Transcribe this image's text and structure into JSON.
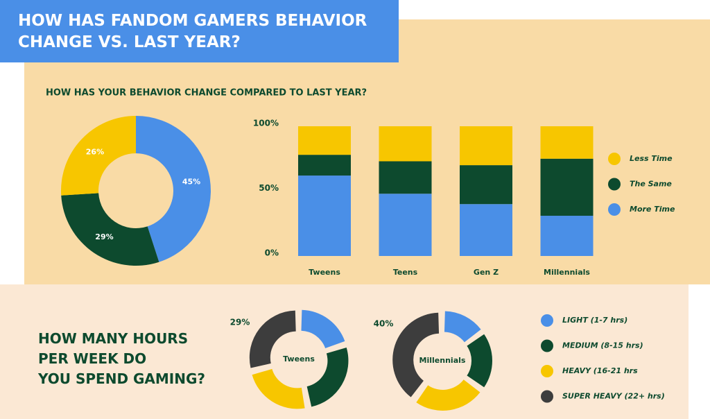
{
  "header": {
    "title": "HOW HAS FANDOM GAMERS BEHAVIOR CHANGE VS. LAST YEAR?"
  },
  "chart_data": [
    {
      "type": "donut",
      "title": "HOW HAS YOUR BEHAVIOR CHANGE COMPARED TO LAST YEAR?",
      "values": [
        45,
        29,
        26
      ],
      "value_labels": [
        "45%",
        "29%",
        "26%"
      ],
      "colors": [
        "#4a8fe7",
        "#0d4a2e",
        "#f7c600"
      ]
    },
    {
      "type": "stacked_bar",
      "categories": [
        "Tweens",
        "Teens",
        "Gen Z",
        "Millennials"
      ],
      "series": [
        {
          "name": "More Time",
          "color": "#4a8fe7",
          "values": [
            62,
            48,
            40,
            31
          ]
        },
        {
          "name": "The Same",
          "color": "#0d4a2e",
          "values": [
            16,
            25,
            30,
            44
          ]
        },
        {
          "name": "Less Time",
          "color": "#f7c600",
          "values": [
            22,
            27,
            30,
            25
          ]
        }
      ],
      "ylim": [
        0,
        100
      ],
      "yticks": [
        {
          "value": 0,
          "label": "0%"
        },
        {
          "value": 50,
          "label": "50%"
        },
        {
          "value": 100,
          "label": "100%"
        }
      ]
    },
    {
      "type": "donut_pair",
      "title": "HOW MANY HOURS PER WEEK DO YOU SPEND GAMING?",
      "categories": [
        "LIGHT (1-7 hrs)",
        "MEDIUM (8-15 hrs)",
        "HEAVY (16-21 hrs",
        "SUPER HEAVY (22+ hrs)"
      ],
      "colors": [
        "#4a8fe7",
        "#0d4a2e",
        "#f7c600",
        "#3d3d3d"
      ],
      "series": [
        {
          "name": "Tweens",
          "values": [
            20,
            27,
            24,
            29
          ],
          "value_labels": [
            null,
            null,
            null,
            "29%"
          ]
        },
        {
          "name": "Millennials",
          "values": [
            15,
            20,
            25,
            40
          ],
          "value_labels": [
            null,
            null,
            null,
            "40%"
          ]
        }
      ]
    }
  ]
}
